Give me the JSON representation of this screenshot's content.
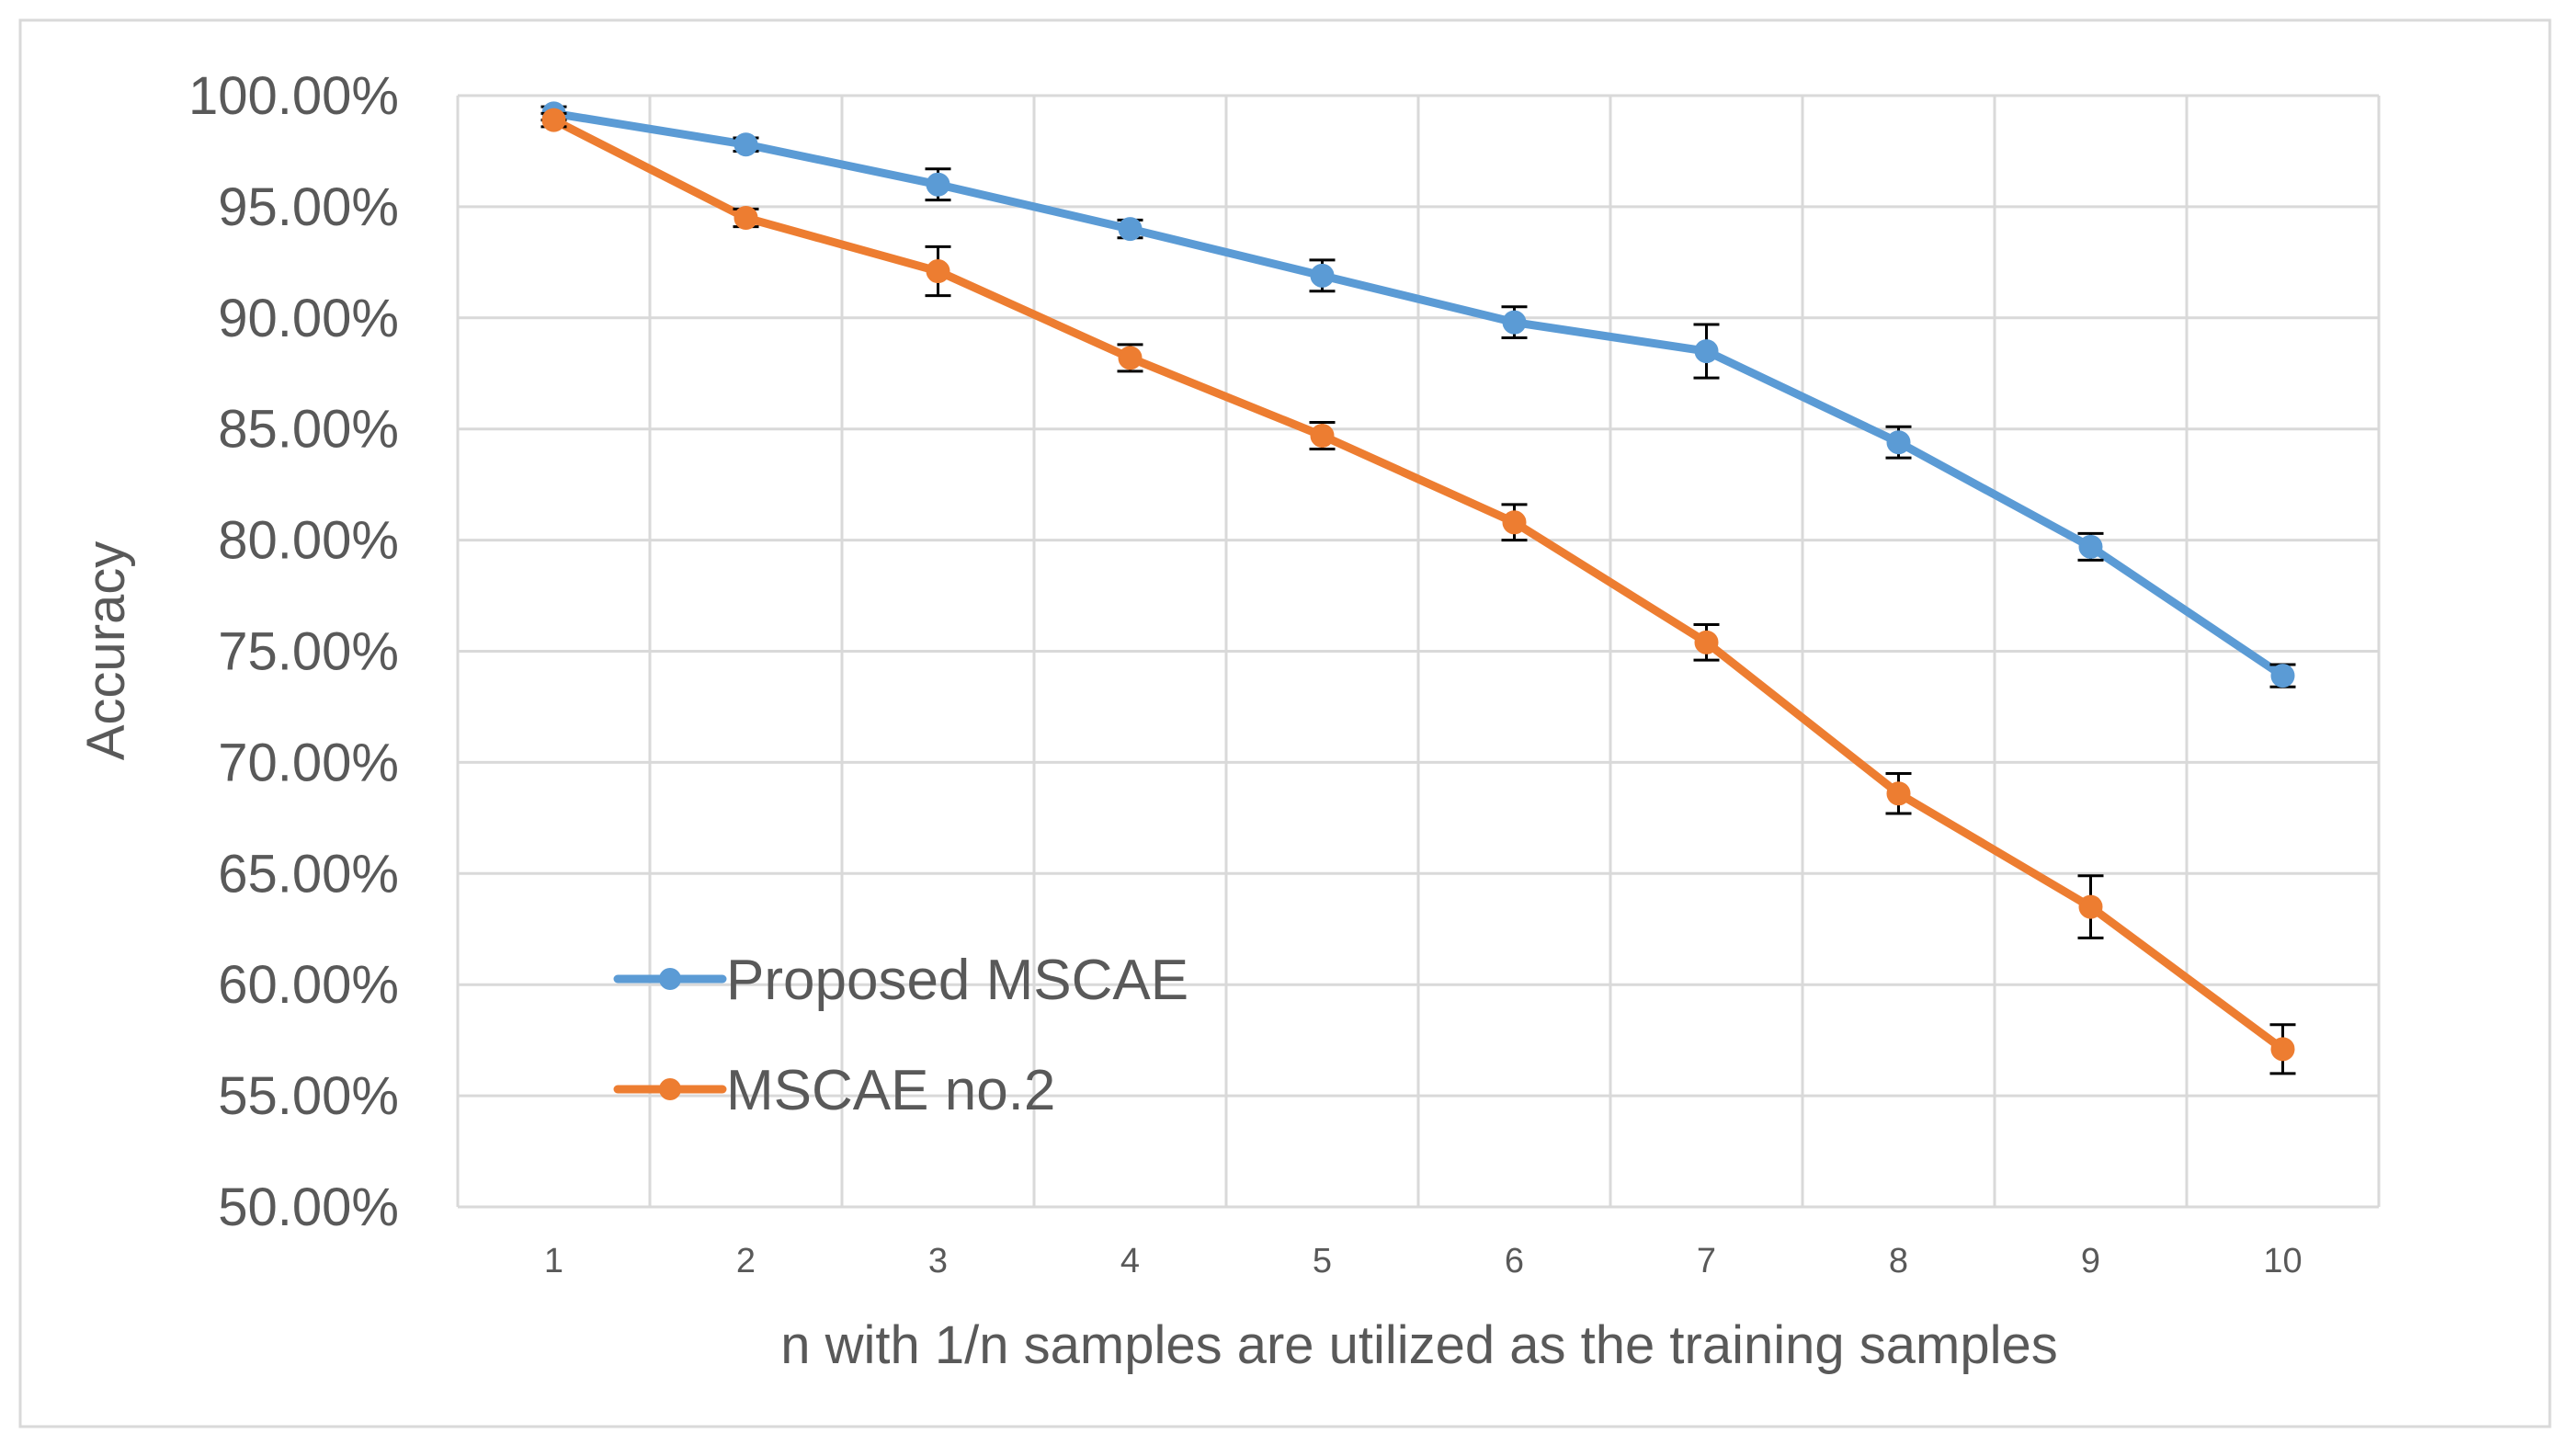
{
  "chart_data": {
    "type": "line",
    "title": "",
    "xlabel": "n with 1/n samples are utilized as the training samples",
    "ylabel": "Accuracy",
    "x": [
      1,
      2,
      3,
      4,
      5,
      6,
      7,
      8,
      9,
      10
    ],
    "x_tick_labels": [
      "1",
      "2",
      "3",
      "4",
      "5",
      "6",
      "7",
      "8",
      "9",
      "10"
    ],
    "ylim": [
      50,
      100
    ],
    "y_ticks": [
      50,
      55,
      60,
      65,
      70,
      75,
      80,
      85,
      90,
      95,
      100
    ],
    "y_tick_labels": [
      "50.00%",
      "55.00%",
      "60.00%",
      "65.00%",
      "70.00%",
      "75.00%",
      "80.00%",
      "85.00%",
      "90.00%",
      "95.00%",
      "100.00%"
    ],
    "grid": true,
    "legend_position": "bottom-left",
    "series": [
      {
        "name": "Proposed MSCAE",
        "color": "#5B9BD5",
        "values": [
          99.2,
          97.8,
          96.0,
          94.0,
          91.9,
          89.8,
          88.5,
          84.4,
          79.7,
          73.9
        ],
        "errors": [
          0.3,
          0.3,
          0.7,
          0.4,
          0.7,
          0.7,
          1.2,
          0.7,
          0.6,
          0.5
        ]
      },
      {
        "name": "MSCAE no.2",
        "color": "#ED7D31",
        "values": [
          98.9,
          94.5,
          92.1,
          88.2,
          84.7,
          80.8,
          75.4,
          68.6,
          63.5,
          57.1
        ],
        "errors": [
          0.3,
          0.4,
          1.1,
          0.6,
          0.6,
          0.8,
          0.8,
          0.9,
          1.4,
          1.1
        ]
      }
    ]
  }
}
